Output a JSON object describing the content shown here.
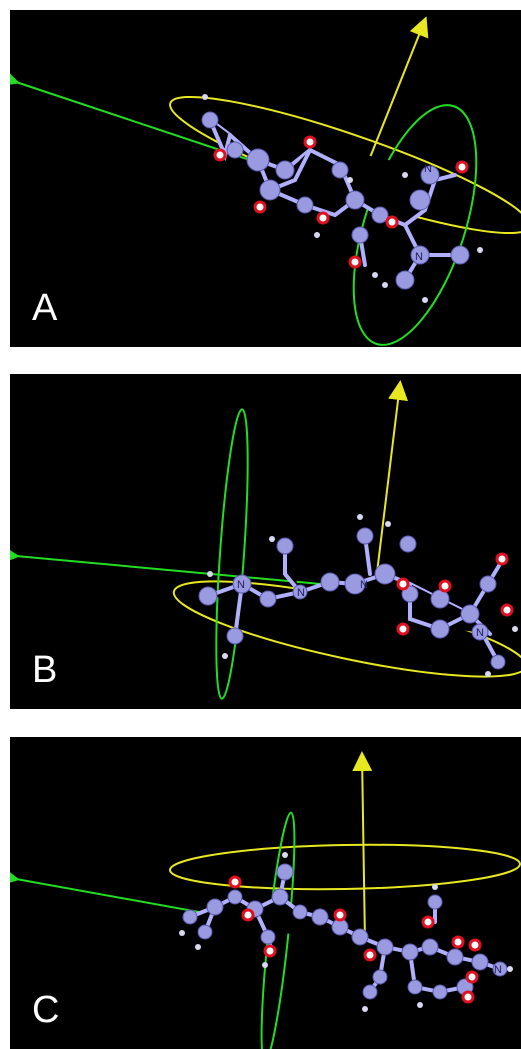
{
  "panels": [
    {
      "label": "A"
    },
    {
      "label": "B"
    },
    {
      "label": "C"
    }
  ],
  "colors": {
    "background": "#000000",
    "axis_green": "#22dd22",
    "axis_yellow": "#e8e820",
    "ellipse_green": "#22dd22",
    "ellipse_yellow": "#e8e820",
    "carbon": "#9a9ae0",
    "oxygen": "#e01020",
    "hydrogen": "#d8d8f0"
  },
  "atom_labels": {
    "nitrogen": "N"
  }
}
